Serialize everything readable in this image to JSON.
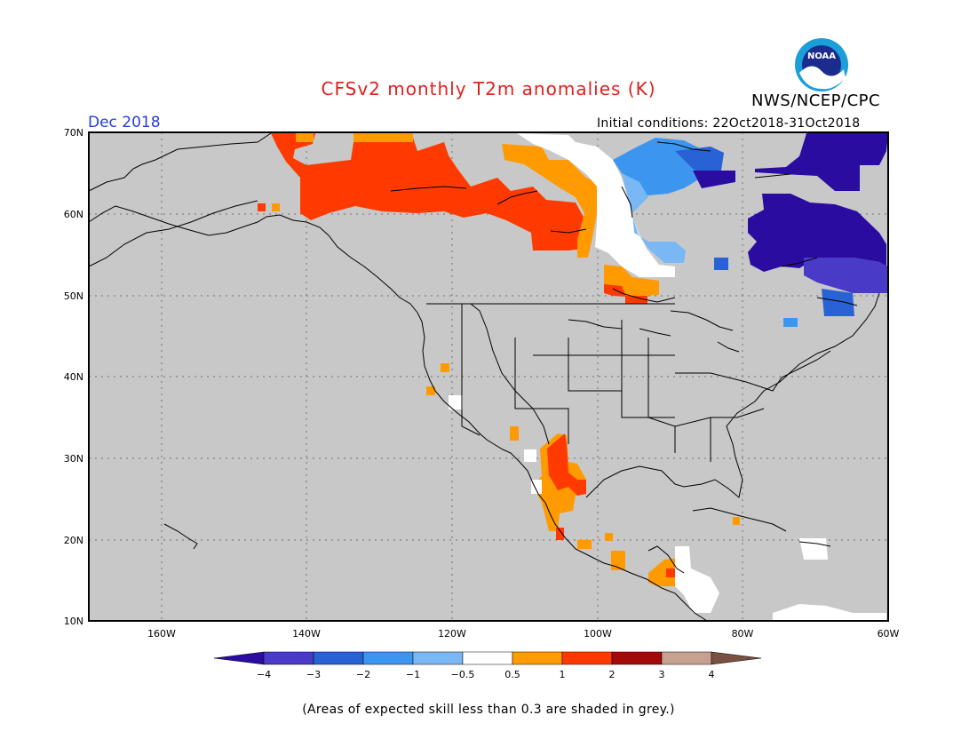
{
  "header": {
    "title": "CFSv2 monthly T2m anomalies (K)",
    "agency": "NWS/NCEP/CPC",
    "logo_text": "NOAA",
    "valid_month": "Dec 2018",
    "initial_conditions": "Initial conditions: 22Oct2018-31Oct2018"
  },
  "map": {
    "lat_labels": [
      "70N",
      "60N",
      "50N",
      "40N",
      "30N",
      "20N",
      "10N"
    ],
    "lon_labels": [
      "160W",
      "140W",
      "120W",
      "100W",
      "80W",
      "60W"
    ],
    "background_color": "#c8c8c8",
    "coastline_color": "#000000"
  },
  "colorbar": {
    "labels": [
      "−4",
      "−3",
      "−2",
      "−1",
      "−0.5",
      "0.5",
      "1",
      "2",
      "3",
      "4"
    ],
    "colors": [
      "#2b0ca1",
      "#4a3ac8",
      "#2862d4",
      "#3c96f0",
      "#7ab8f5",
      "#ffffff",
      "#ff9a00",
      "#ff3a00",
      "#a50a0a",
      "#c8a090",
      "#7a5040"
    ]
  },
  "footnote": "(Areas of expected skill less than 0.3 are shaded in grey.)"
}
